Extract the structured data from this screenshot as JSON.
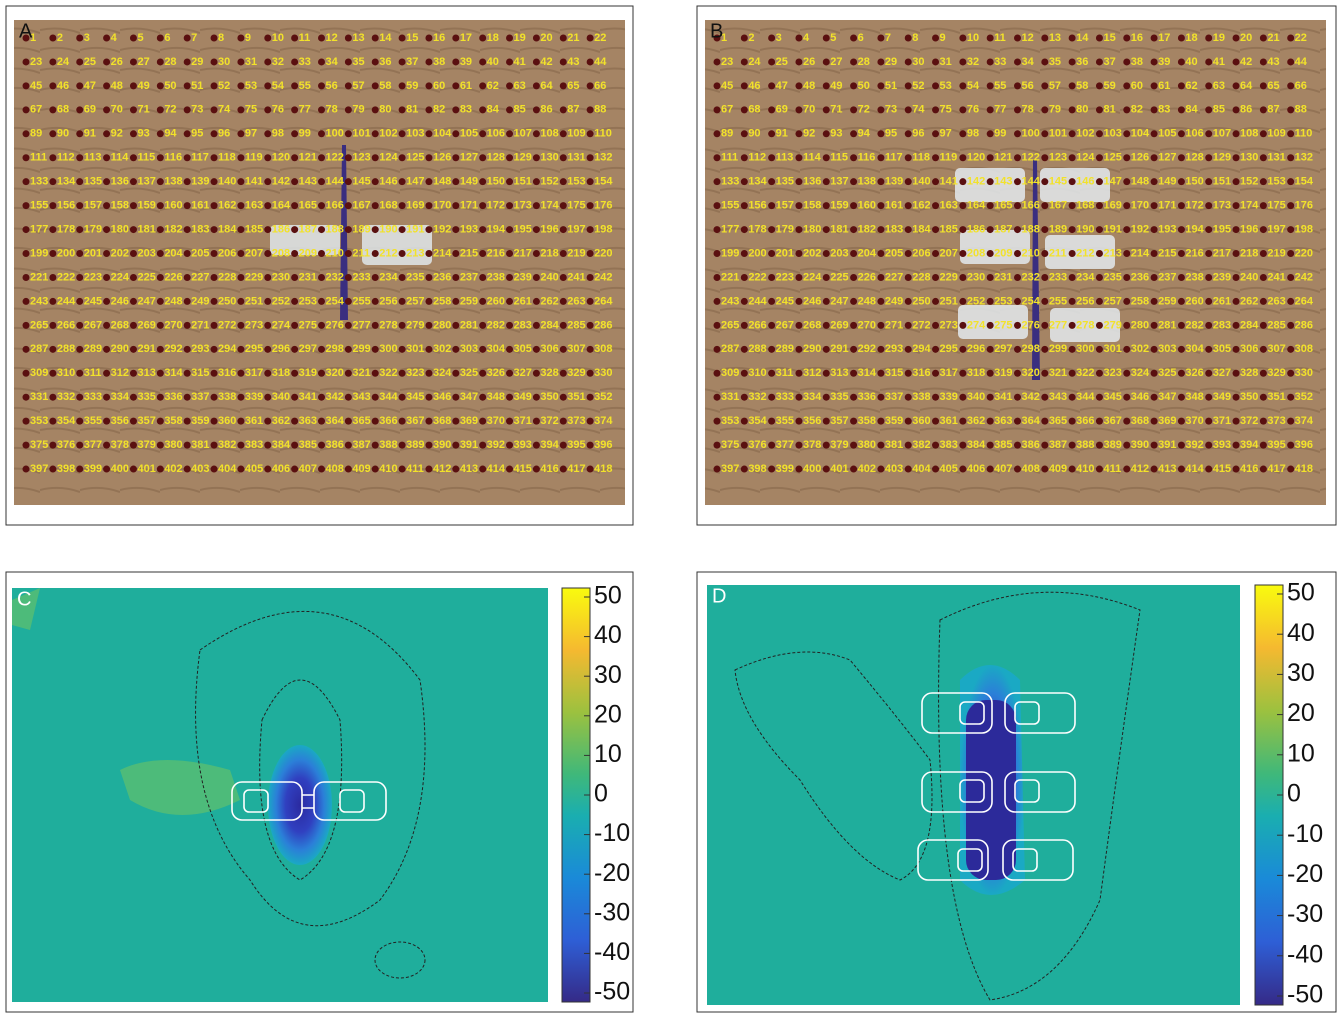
{
  "panels": [
    {
      "label": "A",
      "markers": [
        1,
        2,
        3,
        4,
        5,
        6,
        7,
        8,
        9,
        10,
        11,
        12,
        13,
        14,
        15,
        16,
        17,
        18,
        19,
        20,
        21,
        22,
        23,
        24,
        25,
        26,
        27,
        28,
        29,
        30,
        31,
        32,
        33,
        34,
        35,
        36,
        37,
        38,
        39,
        40,
        41,
        42,
        43,
        44,
        45,
        46,
        47,
        48,
        49,
        50,
        51,
        52,
        53,
        54,
        55,
        56,
        57,
        58,
        59,
        60,
        61,
        62,
        63,
        64,
        65,
        66,
        67,
        68,
        69,
        70,
        71,
        72,
        73,
        74,
        75,
        76,
        77,
        78,
        79,
        80,
        81,
        82,
        83,
        84,
        85,
        86,
        87,
        88,
        89,
        90,
        91,
        92,
        93,
        94,
        95,
        96,
        97,
        98,
        99,
        100,
        101,
        102,
        103,
        104,
        105,
        106,
        107,
        108,
        109,
        110,
        111,
        112,
        113,
        114,
        115,
        116,
        117,
        118,
        119,
        120,
        121,
        122,
        123,
        124,
        125,
        126,
        127,
        128,
        129,
        130,
        131,
        132,
        133,
        134,
        135,
        136,
        137,
        138,
        139,
        140,
        141,
        142,
        143,
        144,
        145,
        146,
        147,
        148,
        149,
        150,
        151,
        152,
        153,
        154,
        155,
        156,
        157,
        158,
        159,
        160,
        161,
        162,
        163,
        164,
        165,
        166,
        167,
        168,
        169,
        170,
        171,
        172,
        173,
        174,
        175,
        176,
        177,
        178,
        179,
        180,
        181,
        182,
        183,
        184,
        185,
        186,
        187,
        188,
        189,
        190,
        191,
        192,
        193,
        194,
        195,
        196,
        197,
        198,
        199,
        200,
        201,
        202,
        203,
        204,
        205,
        206,
        207,
        208,
        209,
        210,
        211,
        212,
        213,
        214,
        215,
        216,
        217,
        218,
        219,
        220,
        221,
        222,
        223,
        224,
        225,
        226,
        227,
        228,
        229,
        230,
        231,
        232,
        233,
        234,
        235,
        236,
        237,
        238,
        239,
        240,
        241,
        242,
        243,
        244,
        245,
        246,
        247,
        248,
        249,
        250,
        251,
        252,
        253,
        254,
        255,
        256,
        257,
        258,
        259,
        260,
        261,
        262,
        263,
        264,
        265,
        266,
        267,
        268,
        269,
        270,
        271,
        272,
        273,
        274,
        275,
        276,
        277,
        278,
        279,
        280,
        281,
        282,
        283,
        284,
        285,
        286,
        287,
        288,
        289,
        290,
        291,
        292,
        293,
        294,
        295,
        296,
        297,
        298,
        299,
        300,
        301,
        302,
        303,
        304,
        305,
        306,
        307,
        308,
        309,
        310,
        311,
        312,
        313,
        314,
        315,
        316,
        317,
        318,
        319,
        320,
        321,
        322,
        323,
        324,
        325,
        326,
        327,
        328,
        329,
        330,
        331,
        332,
        333,
        334,
        335,
        336,
        337,
        338,
        339,
        340,
        341,
        342,
        343,
        344,
        345,
        346,
        347,
        348,
        349,
        350,
        351,
        352,
        353,
        354,
        355,
        356,
        357,
        358,
        359,
        360,
        361,
        362,
        363,
        364,
        365,
        366,
        367,
        368,
        369,
        370,
        371,
        372,
        373,
        374,
        375,
        376,
        377,
        378,
        379,
        380,
        381,
        382,
        383,
        384,
        385,
        386,
        387,
        388,
        389,
        390,
        391,
        392,
        393,
        394,
        395,
        396,
        397,
        398,
        399,
        400,
        401,
        402,
        403,
        404,
        405,
        406,
        407,
        408,
        409,
        410,
        411,
        412,
        413,
        414,
        415,
        416,
        417,
        418
      ]
    },
    {
      "label": "B",
      "markers": [
        1,
        2,
        3,
        4,
        5,
        6,
        7,
        8,
        9,
        10,
        11,
        12,
        13,
        14,
        15,
        16,
        17,
        18,
        19,
        20,
        21,
        22,
        23,
        24,
        25,
        26,
        27,
        28,
        29,
        30,
        31,
        32,
        33,
        34,
        35,
        36,
        37,
        38,
        39,
        40,
        41,
        42,
        43,
        44,
        45,
        46,
        47,
        48,
        49,
        50,
        51,
        52,
        53,
        54,
        55,
        56,
        57,
        58,
        59,
        60,
        61,
        62,
        63,
        64,
        65,
        66,
        67,
        68,
        69,
        70,
        71,
        72,
        73,
        74,
        75,
        76,
        77,
        78,
        79,
        80,
        81,
        82,
        83,
        84,
        85,
        86,
        87,
        88,
        89,
        90,
        91,
        92,
        93,
        94,
        95,
        96,
        97,
        98,
        99,
        100,
        101,
        102,
        103,
        104,
        105,
        106,
        107,
        108,
        109,
        110,
        111,
        112,
        113,
        114,
        115,
        116,
        117,
        118,
        119,
        120,
        121,
        122,
        123,
        124,
        125,
        126,
        127,
        128,
        129,
        130,
        131,
        132,
        133,
        134,
        135,
        136,
        137,
        138,
        139,
        140,
        141,
        142,
        143,
        144,
        145,
        146,
        147,
        148,
        149,
        150,
        151,
        152,
        153,
        154,
        155,
        156,
        157,
        158,
        159,
        160,
        161,
        162,
        163,
        164,
        165,
        166,
        167,
        168,
        169,
        170,
        171,
        172,
        173,
        174,
        175,
        176,
        177,
        178,
        179,
        180,
        181,
        182,
        183,
        184,
        185,
        186,
        187,
        188,
        189,
        190,
        191,
        192,
        193,
        194,
        195,
        196,
        197,
        198,
        199,
        200,
        201,
        202,
        203,
        204,
        205,
        206,
        207,
        208,
        209,
        210,
        211,
        212,
        213,
        214,
        215,
        216,
        217,
        218,
        219,
        220,
        221,
        222,
        223,
        224,
        225,
        226,
        227,
        228,
        229,
        230,
        231,
        232,
        233,
        234,
        235,
        236,
        237,
        238,
        239,
        240,
        241,
        242,
        243,
        244,
        245,
        246,
        247,
        248,
        249,
        250,
        251,
        252,
        253,
        254,
        255,
        256,
        257,
        258,
        259,
        260,
        261,
        262,
        263,
        264,
        265,
        266,
        267,
        268,
        269,
        270,
        271,
        272,
        273,
        274,
        275,
        276,
        277,
        278,
        279,
        280,
        281,
        282,
        283,
        284,
        285,
        286,
        287,
        288,
        289,
        290,
        291,
        292,
        293,
        294,
        295,
        296,
        297,
        298,
        299,
        300,
        301,
        302,
        303,
        304,
        305,
        306,
        307,
        308,
        309,
        310,
        311,
        312,
        313,
        314,
        315,
        316,
        317,
        318,
        319,
        320,
        321,
        322,
        323,
        324,
        325,
        326,
        327,
        328,
        329,
        330,
        331,
        332,
        333,
        334,
        335,
        336,
        337,
        338,
        339,
        340,
        341,
        342,
        343,
        344,
        345,
        346,
        347,
        348,
        349,
        350,
        351,
        352,
        353,
        354,
        355,
        356,
        357,
        358,
        359,
        360,
        361,
        362,
        363,
        364,
        365,
        366,
        367,
        368,
        369,
        370,
        371,
        372,
        373,
        374,
        375,
        376,
        377,
        378,
        379,
        380,
        381,
        382,
        383,
        384,
        385,
        386,
        387,
        388,
        389,
        390,
        391,
        392,
        393,
        394,
        395,
        396,
        397,
        398,
        399,
        400,
        401,
        402,
        403,
        404,
        405,
        406,
        407,
        408,
        409,
        410,
        411,
        412,
        413,
        414,
        415,
        416,
        417,
        418
      ]
    },
    {
      "label": "C",
      "colorbar": {
        "range": [
          -50,
          50
        ],
        "ticks": [
          50,
          40,
          30,
          20,
          10,
          0,
          -10,
          -20,
          -30,
          -40,
          -50
        ]
      }
    },
    {
      "label": "D",
      "colorbar": {
        "range": [
          -50,
          50
        ],
        "ticks": [
          50,
          40,
          30,
          20,
          10,
          0,
          -10,
          -20,
          -30,
          -40,
          -50
        ]
      }
    }
  ]
}
